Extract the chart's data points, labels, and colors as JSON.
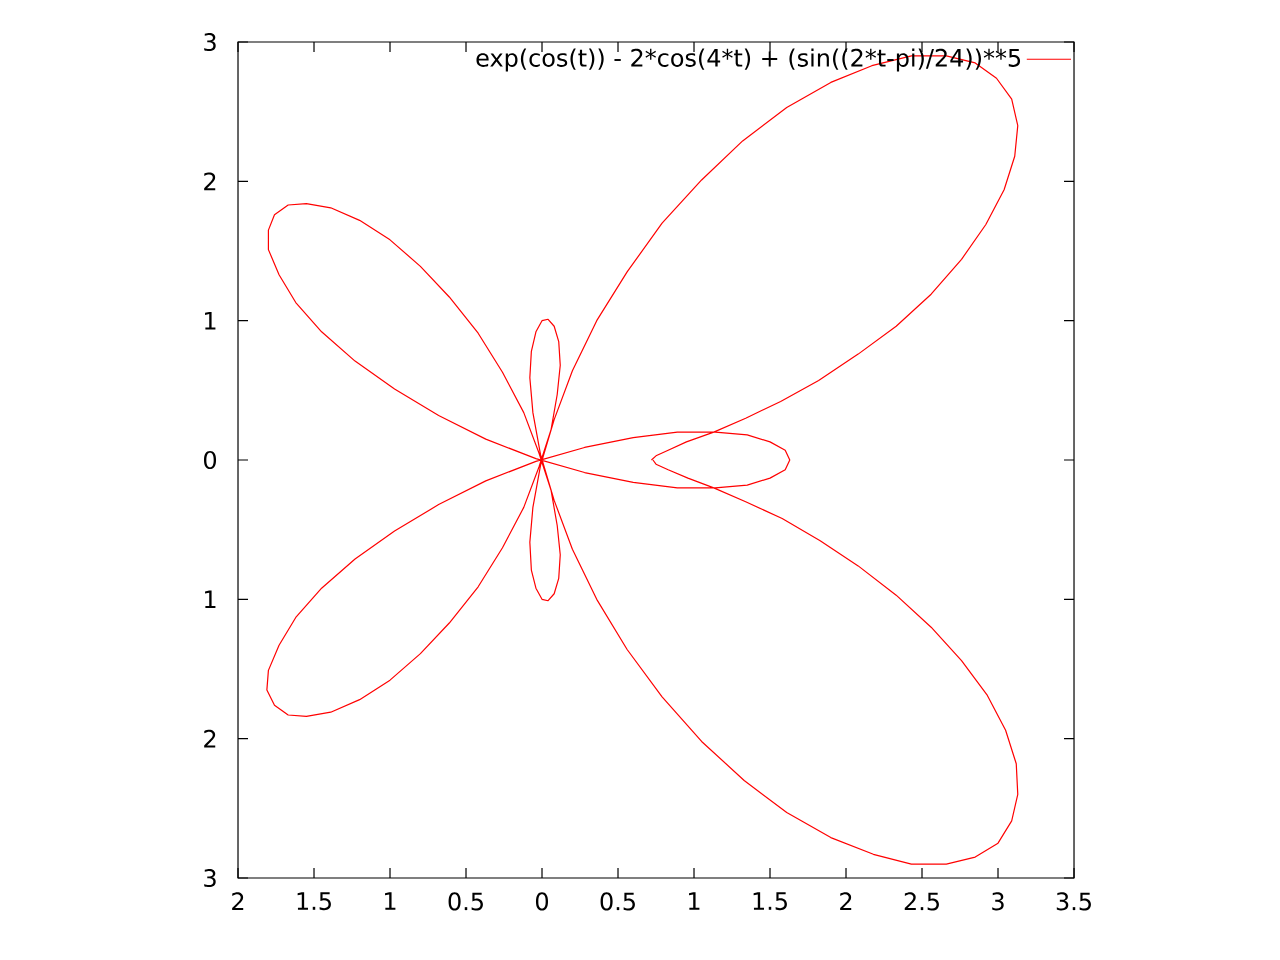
{
  "chart_data": {
    "type": "line",
    "x": [
      0.72,
      0.75,
      0.83,
      0.95,
      1.13,
      1.34,
      1.57,
      1.82,
      2.08,
      2.33,
      2.56,
      2.76,
      2.92,
      3.04,
      3.11,
      3.13,
      3.09,
      2.99,
      2.85,
      2.66,
      2.43,
      2.17,
      1.9,
      1.61,
      1.32,
      1.05,
      0.79,
      0.56,
      0.36,
      0.2,
      0.08,
      -0.01,
      -0.06,
      -0.08,
      -0.07,
      -0.04,
      0.0,
      0.04,
      0.08,
      0.11,
      0.12,
      0.1,
      0.06,
      -0.02,
      -0.12,
      -0.26,
      -0.42,
      -0.61,
      -0.8,
      -1.0,
      -1.2,
      -1.39,
      -1.55,
      -1.67,
      -1.76,
      -1.8,
      -1.8,
      -1.73,
      -1.62,
      -1.45,
      -1.23,
      -0.97,
      -0.68,
      -0.37,
      -0.04,
      0.28,
      0.6,
      0.89,
      1.14,
      1.35,
      1.5,
      1.6,
      1.63,
      1.6,
      1.5,
      1.35,
      1.14,
      0.89,
      0.6,
      0.28,
      -0.04,
      -0.37,
      -0.68,
      -0.97,
      -1.23,
      -1.45,
      -1.62,
      -1.73,
      -1.8,
      -1.81,
      -1.76,
      -1.67,
      -1.55,
      -1.39,
      -1.2,
      -1.0,
      -0.8,
      -0.61,
      -0.42,
      -0.26,
      -0.12,
      -0.02,
      0.06,
      0.1,
      0.12,
      0.11,
      0.08,
      0.04,
      0.0,
      -0.04,
      -0.07,
      -0.08,
      -0.06,
      -0.01,
      0.08,
      0.2,
      0.36,
      0.56,
      0.79,
      1.05,
      1.33,
      1.61,
      1.9,
      2.18,
      2.43,
      2.66,
      2.85,
      3.0,
      3.09,
      3.13,
      3.12,
      3.05,
      2.93,
      2.76,
      2.56,
      2.33,
      2.08,
      1.83,
      1.58,
      1.34,
      1.13,
      0.96,
      0.83,
      0.75,
      0.73
    ],
    "series": [
      {
        "name": "exp(cos(t)) - 2*cos(4*t) + (sin((2*t-pi)/24))**5",
        "color": "#ff0000",
        "values": [
          0.0,
          0.03,
          0.07,
          0.13,
          0.2,
          0.3,
          0.42,
          0.57,
          0.76,
          0.96,
          1.19,
          1.44,
          1.69,
          1.94,
          2.18,
          2.4,
          2.59,
          2.74,
          2.85,
          2.9,
          2.9,
          2.83,
          2.71,
          2.53,
          2.29,
          2.01,
          1.7,
          1.35,
          1.0,
          0.64,
          0.29,
          -0.04,
          -0.34,
          -0.59,
          -0.79,
          -0.92,
          -1.0,
          -1.01,
          -0.96,
          -0.85,
          -0.68,
          -0.47,
          -0.22,
          0.05,
          0.34,
          0.63,
          0.91,
          1.17,
          1.39,
          1.58,
          1.72,
          1.81,
          1.84,
          1.83,
          1.76,
          1.65,
          1.51,
          1.33,
          1.13,
          0.92,
          0.71,
          0.51,
          0.32,
          0.15,
          0.01,
          -0.09,
          -0.16,
          -0.2,
          -0.2,
          -0.18,
          -0.13,
          -0.07,
          0.0,
          0.07,
          0.13,
          0.18,
          0.2,
          0.2,
          0.16,
          0.09,
          -0.01,
          -0.15,
          -0.32,
          -0.51,
          -0.71,
          -0.92,
          -1.13,
          -1.33,
          -1.51,
          -1.65,
          -1.76,
          -1.83,
          -1.84,
          -1.81,
          -1.72,
          -1.58,
          -1.39,
          -1.17,
          -0.91,
          -0.63,
          -0.34,
          -0.05,
          0.22,
          0.47,
          0.68,
          0.85,
          0.96,
          1.01,
          1.0,
          0.92,
          0.78,
          0.59,
          0.34,
          0.04,
          -0.29,
          -0.64,
          -1.0,
          -1.36,
          -1.7,
          -2.02,
          -2.3,
          -2.53,
          -2.71,
          -2.83,
          -2.9,
          -2.9,
          -2.85,
          -2.75,
          -2.59,
          -2.4,
          -2.18,
          -1.94,
          -1.69,
          -1.44,
          -1.2,
          -0.97,
          -0.76,
          -0.58,
          -0.42,
          -0.3,
          -0.2,
          -0.13,
          -0.07,
          -0.03,
          0.0
        ]
      }
    ],
    "xlim": [
      -2,
      3.5
    ],
    "ylim": [
      -3,
      3
    ],
    "xticks": [
      {
        "value": -2,
        "label": "2"
      },
      {
        "value": -1.5,
        "label": "1.5"
      },
      {
        "value": -1,
        "label": "1"
      },
      {
        "value": -0.5,
        "label": "0.5"
      },
      0,
      0.5,
      1,
      1.5,
      2,
      2.5,
      3,
      3.5
    ],
    "yticks": [
      {
        "value": -3,
        "label": "3"
      },
      {
        "value": -2,
        "label": "2"
      },
      {
        "value": -1,
        "label": "1"
      },
      0,
      1,
      2,
      3
    ],
    "legend": "top right"
  }
}
